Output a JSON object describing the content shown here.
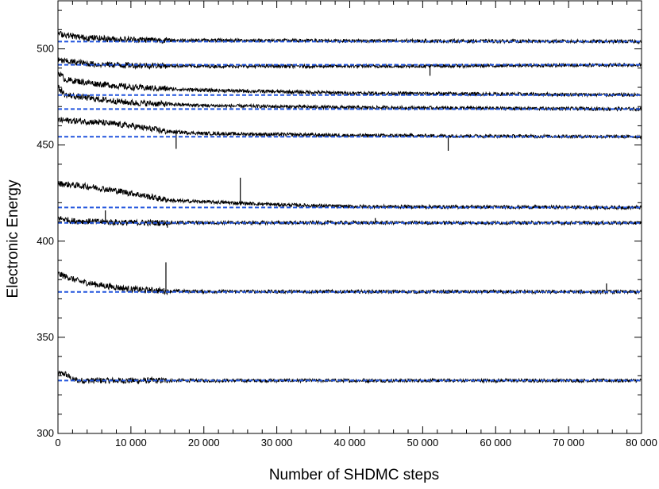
{
  "chart_data": {
    "type": "line",
    "title": "",
    "xlabel": "Number of SHDMC steps",
    "ylabel": "Electronic Energy",
    "xlim": [
      0,
      80000
    ],
    "ylim": [
      300,
      525
    ],
    "grid": false,
    "legend": "none",
    "x_ticks": [
      0,
      10000,
      20000,
      30000,
      40000,
      50000,
      60000,
      70000,
      80000
    ],
    "x_tick_labels": [
      "0",
      "10 000",
      "20 000",
      "30 000",
      "40 000",
      "50 000",
      "60 000",
      "70 000",
      "80 000"
    ],
    "y_ticks": [
      300,
      350,
      400,
      450,
      500
    ],
    "y_tick_labels": [
      "300",
      "350",
      "400",
      "450",
      "500"
    ],
    "colors": {
      "trace": "#000000",
      "reference": "#2255dd"
    },
    "reference_energies": [
      327.5,
      373.6,
      409.5,
      417.5,
      454.3,
      468.7,
      476.0,
      491.7,
      503.8
    ],
    "series": [
      {
        "x": [
          0,
          1000,
          2000,
          3000,
          80000
        ],
        "values": [
          331,
          331,
          328,
          327.5,
          327.5
        ]
      },
      {
        "x": [
          0,
          3000,
          6000,
          10000,
          15000,
          20000,
          80000
        ],
        "values": [
          383,
          379,
          377,
          375,
          374,
          373.8,
          373.6
        ]
      },
      {
        "x": [
          0,
          2000,
          6000,
          10000,
          80000
        ],
        "values": [
          412,
          410.5,
          410,
          409.6,
          409.5
        ]
      },
      {
        "x": [
          0,
          5000,
          10000,
          14000,
          16000,
          20000,
          30000,
          40000,
          80000
        ],
        "values": [
          430,
          428,
          425,
          422,
          421,
          420.5,
          419,
          418,
          417.5
        ]
      },
      {
        "x": [
          0,
          5000,
          10000,
          15000,
          20000,
          30000,
          40000,
          80000
        ],
        "values": [
          463,
          462,
          460,
          457,
          456,
          455.5,
          455,
          454.3
        ]
      },
      {
        "x": [
          0,
          1000,
          5000,
          10000,
          20000,
          40000,
          80000
        ],
        "values": [
          480,
          476,
          474,
          472,
          470.5,
          469.5,
          468.7
        ]
      },
      {
        "x": [
          0,
          1000,
          5000,
          10000,
          20000,
          40000,
          80000
        ],
        "values": [
          488,
          484,
          482,
          480,
          478.5,
          477,
          476.0
        ]
      },
      {
        "x": [
          0,
          5000,
          10000,
          20000,
          47000,
          80000
        ],
        "values": [
          494,
          492,
          491.5,
          491,
          491,
          491.7
        ]
      },
      {
        "x": [
          0,
          3000,
          8000,
          15000,
          80000
        ],
        "values": [
          508,
          506,
          505,
          504.5,
          503.8
        ]
      }
    ],
    "spikes": [
      {
        "x": 14800,
        "y": 389
      },
      {
        "x": 15000,
        "y": 407
      },
      {
        "x": 6500,
        "y": 416
      },
      {
        "x": 25000,
        "y": 433
      },
      {
        "x": 53500,
        "y": 447
      },
      {
        "x": 16200,
        "y": 448
      },
      {
        "x": 75200,
        "y": 378
      },
      {
        "x": 37000,
        "y": 411
      },
      {
        "x": 51000,
        "y": 486
      },
      {
        "x": 43500,
        "y": 412
      }
    ]
  }
}
